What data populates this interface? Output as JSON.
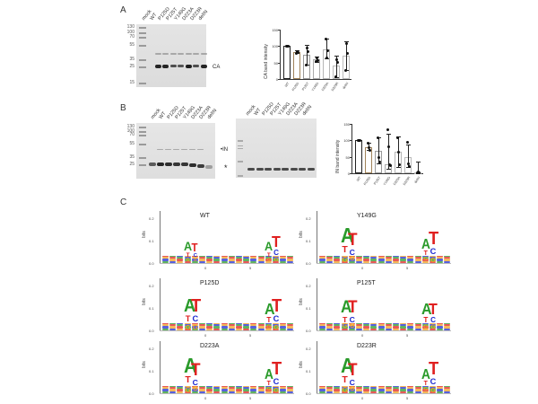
{
  "figure": {
    "panels": {
      "A": {
        "label": "A",
        "gel": {
          "ladder": [
            "130",
            "100",
            "70",
            "55",
            "35",
            "25",
            "15"
          ],
          "lanes": [
            "mock",
            "WT",
            "P125D",
            "P125T",
            "Y149G",
            "D223A",
            "D223R",
            "delIN"
          ],
          "band_label": "CA"
        }
      },
      "B": {
        "label": "B",
        "gel_left": {
          "ladder": [
            "130",
            "100",
            "70",
            "55",
            "35",
            "25"
          ],
          "lanes": [
            "mock",
            "WT",
            "P125D",
            "P125T",
            "Y149G",
            "D223A",
            "D223R",
            "delIN"
          ],
          "band_label_in": "IN",
          "band_label_star": "*"
        },
        "gel_right": {
          "lanes": [
            "mock",
            "WT",
            "P125D",
            "P125T",
            "Y149G",
            "D223A",
            "D223R",
            "delIN"
          ]
        }
      },
      "C": {
        "label": "C",
        "logos": [
          {
            "title": "WT"
          },
          {
            "title": "Y149G"
          },
          {
            "title": "P125D"
          },
          {
            "title": "P125T"
          },
          {
            "title": "D223A"
          },
          {
            "title": "D223R"
          }
        ],
        "logo_ylabel": "bits",
        "logo_yticks": [
          "0.2",
          "0.1",
          "0.0"
        ],
        "logo_xticks": [
          "0",
          "5"
        ]
      }
    }
  },
  "chart_data": [
    {
      "type": "bar",
      "title": "",
      "xlabel": "",
      "ylabel": "CA band intensity",
      "ylim": [
        0,
        150
      ],
      "yticks": [
        "150",
        "100",
        "50",
        "0"
      ],
      "categories": [
        "WT",
        "P125D",
        "P125T",
        "Y149G",
        "D223A",
        "D223R",
        "delIN"
      ],
      "values": [
        100,
        82,
        75,
        60,
        90,
        40,
        72
      ],
      "error_upper": [
        100,
        86,
        104,
        68,
        122,
        72,
        114
      ],
      "error_lower": [
        100,
        78,
        44,
        52,
        62,
        6,
        28
      ],
      "points": [
        [
          100,
          100,
          100
        ],
        [
          80,
          84,
          82
        ],
        [
          43,
          95,
          85
        ],
        [
          55,
          65,
          58
        ],
        [
          122,
          65,
          88
        ],
        [
          8,
          60,
          52
        ],
        [
          28,
          110,
          80
        ]
      ],
      "bar_colors": [
        "#222222",
        "#a0835a",
        "#999999",
        "#aaaaaa",
        "#b5b5b5",
        "#bbbbbb",
        "#bbbbbb"
      ]
    },
    {
      "type": "bar",
      "title": "",
      "xlabel": "",
      "ylabel": "IN band intensity",
      "ylim": [
        0,
        150
      ],
      "yticks": [
        "150",
        "100",
        "50",
        "0"
      ],
      "categories": [
        "WT",
        "P125D",
        "P125T",
        "Y149G",
        "D223A",
        "D223R",
        "delIN"
      ],
      "values": [
        100,
        78,
        68,
        28,
        66,
        48,
        4
      ],
      "error_upper": [
        100,
        92,
        110,
        120,
        112,
        86,
        36
      ],
      "error_lower": [
        100,
        70,
        30,
        15,
        20,
        20,
        0
      ],
      "points": [
        [
          100,
          100,
          100
        ],
        [
          92,
          78,
          70
        ],
        [
          108,
          48,
          35
        ],
        [
          135,
          82,
          28,
          25
        ],
        [
          110,
          65,
          28
        ],
        [
          95,
          30,
          22
        ],
        [
          2,
          6,
          4
        ]
      ],
      "bar_colors": [
        "#222222",
        "#a0835a",
        "#999999",
        "#aaaaaa",
        "#b5b5b5",
        "#bbbbbb",
        "#bbbbbb"
      ]
    },
    {
      "type": "sequence-logo",
      "title": "WT / Y149G / P125D / P125T / D223A / D223R",
      "ylabel": "bits",
      "ylim": [
        0,
        0.25
      ],
      "yticks": [
        "0.0",
        "0.1",
        "0.2"
      ],
      "xticks": [
        "0",
        "5"
      ],
      "series": [
        {
          "name": "WT",
          "peak_positions": [
            {
              "pos": -4,
              "top": "A",
              "height": 0.11
            },
            {
              "pos": -3,
              "top": "T",
              "height": 0.1
            },
            {
              "pos": 7,
              "top": "A",
              "height": 0.11
            },
            {
              "pos": 8,
              "top": "T",
              "height": 0.14
            }
          ]
        },
        {
          "name": "Y149G",
          "peak_positions": [
            {
              "pos": -4,
              "top": "A",
              "height": 0.18
            },
            {
              "pos": -3,
              "top": "T",
              "height": 0.15
            },
            {
              "pos": 7,
              "top": "A",
              "height": 0.12
            },
            {
              "pos": 8,
              "top": "T",
              "height": 0.16
            }
          ]
        },
        {
          "name": "P125D",
          "peak_positions": [
            {
              "pos": -4,
              "top": "A",
              "height": 0.16
            },
            {
              "pos": -3,
              "top": "T",
              "height": 0.16
            },
            {
              "pos": 7,
              "top": "A",
              "height": 0.14
            },
            {
              "pos": 8,
              "top": "T",
              "height": 0.16
            }
          ]
        },
        {
          "name": "P125T",
          "peak_positions": [
            {
              "pos": -4,
              "top": "A",
              "height": 0.15
            },
            {
              "pos": -3,
              "top": "T",
              "height": 0.15
            },
            {
              "pos": 7,
              "top": "A",
              "height": 0.14
            },
            {
              "pos": 8,
              "top": "T",
              "height": 0.14
            }
          ]
        },
        {
          "name": "D223A",
          "peak_positions": [
            {
              "pos": -4,
              "top": "A",
              "height": 0.18
            },
            {
              "pos": -3,
              "top": "T",
              "height": 0.15
            },
            {
              "pos": 7,
              "top": "A",
              "height": 0.12
            },
            {
              "pos": 8,
              "top": "T",
              "height": 0.16
            }
          ]
        },
        {
          "name": "D223R",
          "peak_positions": [
            {
              "pos": -4,
              "top": "A",
              "height": 0.18
            },
            {
              "pos": -3,
              "top": "T",
              "height": 0.15
            },
            {
              "pos": 7,
              "top": "A",
              "height": 0.12
            },
            {
              "pos": 8,
              "top": "T",
              "height": 0.16
            }
          ]
        }
      ]
    }
  ],
  "colors": {
    "A": "#2a9a2a",
    "C": "#1f2bd0",
    "G": "#f0a020",
    "T": "#e02020"
  }
}
